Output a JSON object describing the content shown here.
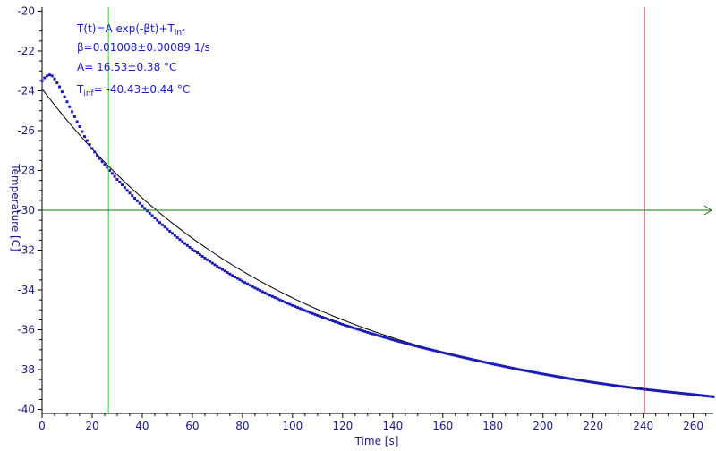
{
  "chart_data": {
    "type": "scatter",
    "xlabel": "Time [s]",
    "ylabel": "Temperature [C]",
    "xlim": [
      0,
      268
    ],
    "ylim": [
      -40.2,
      -19.8
    ],
    "x_ticks": [
      0,
      20,
      40,
      60,
      80,
      100,
      120,
      140,
      160,
      180,
      200,
      220,
      240,
      260
    ],
    "y_ticks": [
      -20,
      -22,
      -24,
      -26,
      -28,
      -30,
      -32,
      -34,
      -36,
      -38,
      -40
    ],
    "grid": false,
    "annotations": {
      "model": {
        "base": "T(t)=A exp(-βt)+T",
        "sub": "inf"
      },
      "beta": "β=0.01008±0.00089 1/s",
      "amp": "A= 16.53±0.38 °C",
      "tinf": {
        "base": "T",
        "sub": "inf",
        "rest": "= -40.43±0.44 °C"
      }
    },
    "markers": {
      "green_vertical_x": 26.5,
      "red_vertical_x": 240.5,
      "horizontal_y": -30
    },
    "fit": {
      "A": 16.53,
      "beta": 0.01008,
      "T_inf": -40.43
    },
    "series": [
      {
        "style": "dots",
        "color": "#1a1ab4",
        "x": [
          0,
          1,
          2,
          3,
          4,
          5,
          6,
          7,
          8,
          9,
          10,
          11,
          12,
          13,
          14,
          15,
          16,
          17,
          18,
          19,
          20,
          22,
          24,
          26,
          28,
          30,
          32,
          34,
          36,
          38,
          40,
          42,
          44,
          46,
          48,
          50,
          55,
          60,
          65,
          70,
          75,
          80,
          85,
          90,
          95,
          100,
          110,
          120,
          130,
          140,
          150,
          160,
          170,
          180,
          190,
          200,
          210,
          220,
          230,
          240,
          250,
          260,
          268
        ],
        "y": [
          -23.5,
          -23.35,
          -23.25,
          -23.2,
          -23.25,
          -23.4,
          -23.6,
          -23.8,
          -24.05,
          -24.3,
          -24.55,
          -24.8,
          -25.05,
          -25.3,
          -25.55,
          -25.8,
          -26.05,
          -26.3,
          -26.5,
          -26.7,
          -26.9,
          -27.25,
          -27.55,
          -27.85,
          -28.15,
          -28.45,
          -28.72,
          -29.0,
          -29.27,
          -29.52,
          -29.78,
          -30.03,
          -30.27,
          -30.5,
          -30.73,
          -30.95,
          -31.47,
          -31.96,
          -32.4,
          -32.82,
          -33.2,
          -33.56,
          -33.9,
          -34.21,
          -34.5,
          -34.78,
          -35.28,
          -35.73,
          -36.13,
          -36.5,
          -36.84,
          -37.15,
          -37.44,
          -37.72,
          -37.98,
          -38.22,
          -38.44,
          -38.64,
          -38.82,
          -38.98,
          -39.12,
          -39.25,
          -39.36
        ]
      }
    ]
  }
}
